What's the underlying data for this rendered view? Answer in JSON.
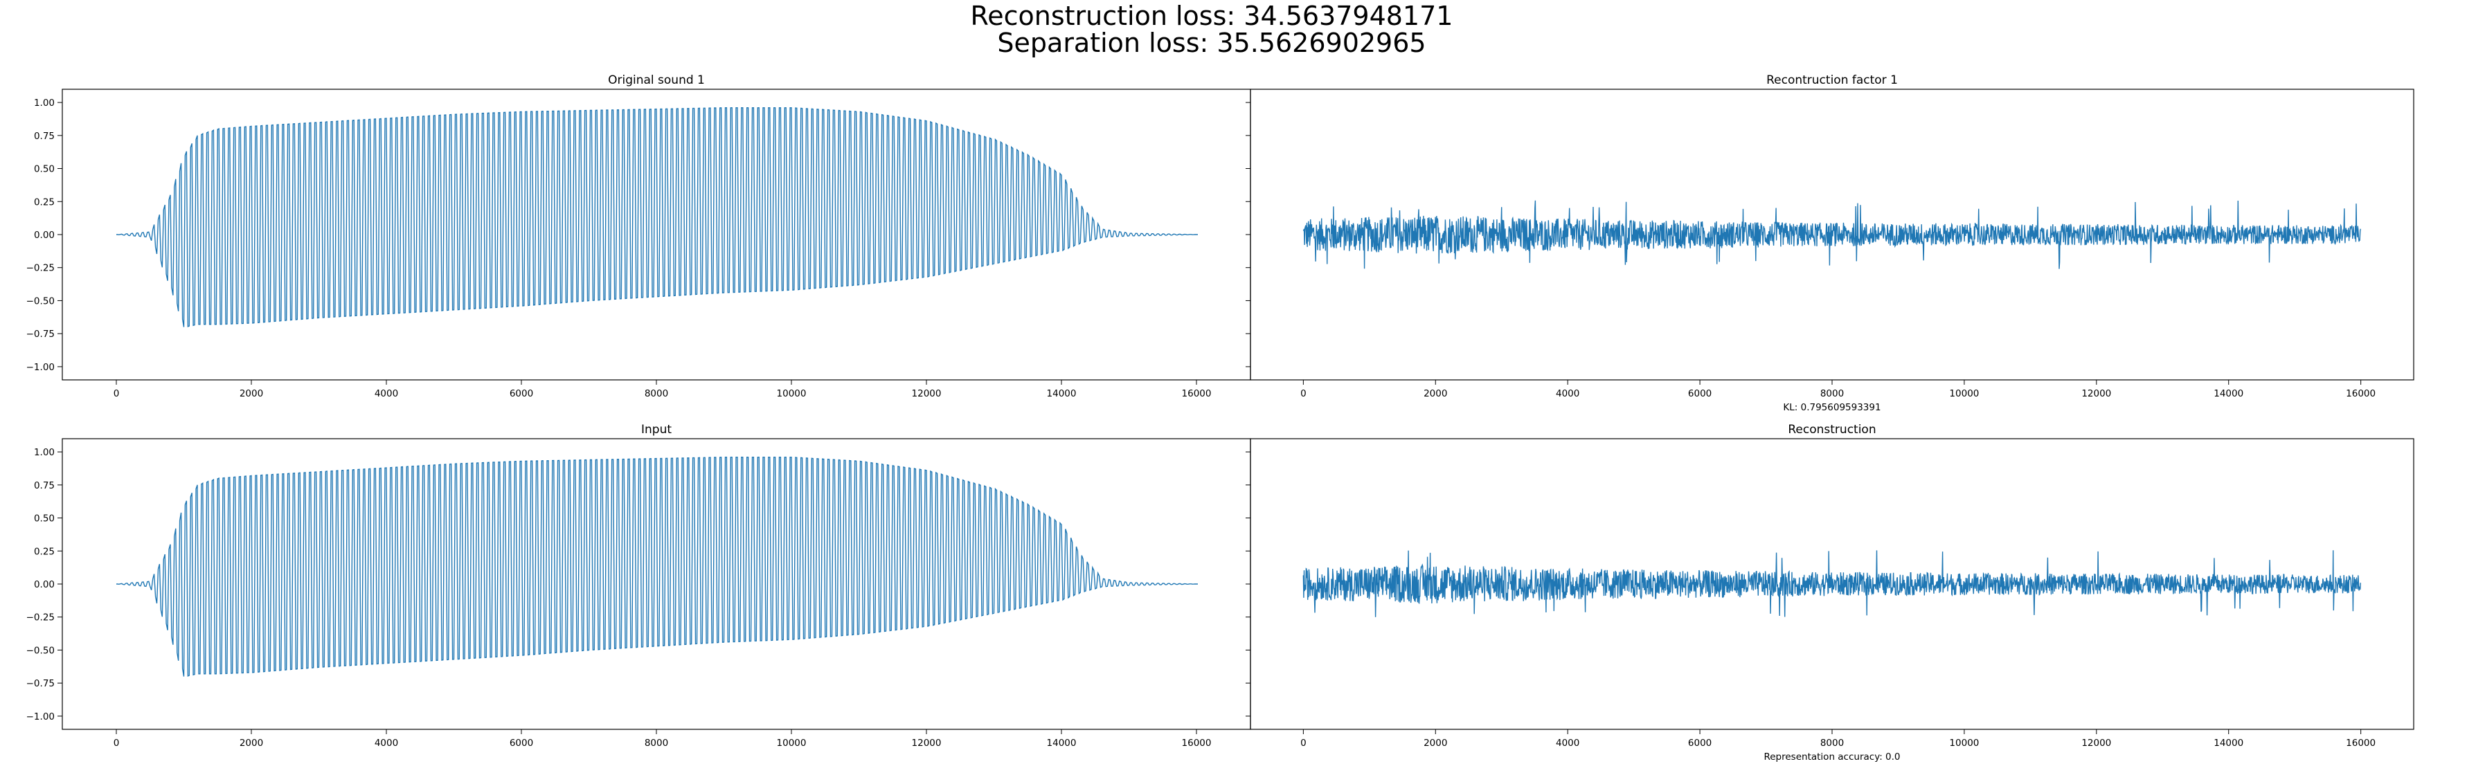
{
  "figure": {
    "title_line1": "Reconstruction loss: 34.5637948171",
    "title_line2": "Separation loss: 35.5626902965"
  },
  "chart_data": [
    {
      "type": "line",
      "title": "Original sound 1",
      "xlabel": "",
      "ylabel": "",
      "xlim": [
        -800,
        16800
      ],
      "ylim": [
        -1.1,
        1.1
      ],
      "xticks": [
        0,
        2000,
        4000,
        6000,
        8000,
        10000,
        12000,
        14000,
        16000
      ],
      "yticks": [
        1.0,
        0.75,
        0.5,
        0.25,
        0.0,
        -0.25,
        -0.5,
        -0.75,
        -1.0
      ],
      "xtick_labels": [
        "0",
        "2000",
        "4000",
        "6000",
        "8000",
        "10000",
        "12000",
        "14000",
        "16000"
      ],
      "ytick_labels": [
        "1.00",
        "0.75",
        "0.50",
        "0.25",
        "0.00",
        "−0.25",
        "−0.50",
        "−0.75",
        "−1.00"
      ],
      "color": "#1f77b4",
      "series": {
        "kind": "tone",
        "num_samples": 16000,
        "upper_envelope": [
          [
            0,
            0.0
          ],
          [
            500,
            0.02
          ],
          [
            800,
            0.3
          ],
          [
            1000,
            0.6
          ],
          [
            1200,
            0.75
          ],
          [
            1500,
            0.8
          ],
          [
            2000,
            0.82
          ],
          [
            3000,
            0.85
          ],
          [
            4000,
            0.88
          ],
          [
            5000,
            0.91
          ],
          [
            6000,
            0.93
          ],
          [
            7000,
            0.94
          ],
          [
            8000,
            0.95
          ],
          [
            9000,
            0.96
          ],
          [
            10000,
            0.96
          ],
          [
            11000,
            0.93
          ],
          [
            12000,
            0.86
          ],
          [
            13000,
            0.72
          ],
          [
            13500,
            0.6
          ],
          [
            14000,
            0.45
          ],
          [
            14300,
            0.2
          ],
          [
            14600,
            0.04
          ],
          [
            15000,
            0.01
          ],
          [
            16000,
            0.0
          ]
        ],
        "lower_envelope": [
          [
            0,
            0.0
          ],
          [
            500,
            -0.02
          ],
          [
            800,
            -0.4
          ],
          [
            1000,
            -0.7
          ],
          [
            1200,
            -0.68
          ],
          [
            1500,
            -0.68
          ],
          [
            2000,
            -0.67
          ],
          [
            3000,
            -0.63
          ],
          [
            4000,
            -0.6
          ],
          [
            5000,
            -0.57
          ],
          [
            6000,
            -0.54
          ],
          [
            7000,
            -0.5
          ],
          [
            8000,
            -0.47
          ],
          [
            9000,
            -0.44
          ],
          [
            10000,
            -0.42
          ],
          [
            11000,
            -0.38
          ],
          [
            12000,
            -0.32
          ],
          [
            13000,
            -0.22
          ],
          [
            13500,
            -0.17
          ],
          [
            14000,
            -0.12
          ],
          [
            14300,
            -0.06
          ],
          [
            14600,
            -0.02
          ],
          [
            15000,
            -0.01
          ],
          [
            16000,
            0.0
          ]
        ]
      }
    },
    {
      "type": "line",
      "title": "Recontruction factor 1",
      "xlabel": "KL: 0.795609593391",
      "ylabel": "",
      "xlim": [
        -800,
        16800
      ],
      "ylim": [
        -1.1,
        1.1
      ],
      "xticks": [
        0,
        2000,
        4000,
        6000,
        8000,
        10000,
        12000,
        14000,
        16000
      ],
      "xtick_labels": [
        "0",
        "2000",
        "4000",
        "6000",
        "8000",
        "10000",
        "12000",
        "14000",
        "16000"
      ],
      "color": "#1f77b4",
      "series": {
        "kind": "noise",
        "num_samples": 16000,
        "max_amplitude": 0.26,
        "typical_amplitude": [
          [
            0,
            0.12
          ],
          [
            2000,
            0.15
          ],
          [
            4000,
            0.12
          ],
          [
            8000,
            0.09
          ],
          [
            12000,
            0.08
          ],
          [
            16000,
            0.07
          ]
        ]
      }
    },
    {
      "type": "line",
      "title": "Input",
      "xlabel": "",
      "ylabel": "",
      "xlim": [
        -800,
        16800
      ],
      "ylim": [
        -1.1,
        1.1
      ],
      "xticks": [
        0,
        2000,
        4000,
        6000,
        8000,
        10000,
        12000,
        14000,
        16000
      ],
      "yticks": [
        1.0,
        0.75,
        0.5,
        0.25,
        0.0,
        -0.25,
        -0.5,
        -0.75,
        -1.0
      ],
      "xtick_labels": [
        "0",
        "2000",
        "4000",
        "6000",
        "8000",
        "10000",
        "12000",
        "14000",
        "16000"
      ],
      "ytick_labels": [
        "1.00",
        "0.75",
        "0.50",
        "0.25",
        "0.00",
        "−0.25",
        "−0.50",
        "−0.75",
        "−1.00"
      ],
      "color": "#1f77b4",
      "series": {
        "kind": "tone",
        "num_samples": 16000,
        "upper_envelope": [
          [
            0,
            0.0
          ],
          [
            500,
            0.02
          ],
          [
            800,
            0.3
          ],
          [
            1000,
            0.6
          ],
          [
            1200,
            0.75
          ],
          [
            1500,
            0.8
          ],
          [
            2000,
            0.82
          ],
          [
            3000,
            0.85
          ],
          [
            4000,
            0.88
          ],
          [
            5000,
            0.91
          ],
          [
            6000,
            0.93
          ],
          [
            7000,
            0.94
          ],
          [
            8000,
            0.95
          ],
          [
            9000,
            0.96
          ],
          [
            10000,
            0.96
          ],
          [
            11000,
            0.93
          ],
          [
            12000,
            0.86
          ],
          [
            13000,
            0.72
          ],
          [
            13500,
            0.6
          ],
          [
            14000,
            0.45
          ],
          [
            14300,
            0.2
          ],
          [
            14600,
            0.04
          ],
          [
            15000,
            0.01
          ],
          [
            16000,
            0.0
          ]
        ],
        "lower_envelope": [
          [
            0,
            0.0
          ],
          [
            500,
            -0.02
          ],
          [
            800,
            -0.4
          ],
          [
            1000,
            -0.7
          ],
          [
            1200,
            -0.68
          ],
          [
            1500,
            -0.68
          ],
          [
            2000,
            -0.67
          ],
          [
            3000,
            -0.63
          ],
          [
            4000,
            -0.6
          ],
          [
            5000,
            -0.57
          ],
          [
            6000,
            -0.54
          ],
          [
            7000,
            -0.5
          ],
          [
            8000,
            -0.47
          ],
          [
            9000,
            -0.44
          ],
          [
            10000,
            -0.42
          ],
          [
            11000,
            -0.38
          ],
          [
            12000,
            -0.32
          ],
          [
            13000,
            -0.22
          ],
          [
            13500,
            -0.17
          ],
          [
            14000,
            -0.12
          ],
          [
            14300,
            -0.06
          ],
          [
            14600,
            -0.02
          ],
          [
            15000,
            -0.01
          ],
          [
            16000,
            0.0
          ]
        ]
      }
    },
    {
      "type": "line",
      "title": "Reconstruction",
      "xlabel": "Representation accuracy: 0.0",
      "ylabel": "",
      "xlim": [
        -800,
        16800
      ],
      "ylim": [
        -1.1,
        1.1
      ],
      "xticks": [
        0,
        2000,
        4000,
        6000,
        8000,
        10000,
        12000,
        14000,
        16000
      ],
      "xtick_labels": [
        "0",
        "2000",
        "4000",
        "6000",
        "8000",
        "10000",
        "12000",
        "14000",
        "16000"
      ],
      "color": "#1f77b4",
      "series": {
        "kind": "noise",
        "num_samples": 16000,
        "max_amplitude": 0.26,
        "typical_amplitude": [
          [
            0,
            0.12
          ],
          [
            2000,
            0.15
          ],
          [
            4000,
            0.12
          ],
          [
            8000,
            0.09
          ],
          [
            12000,
            0.08
          ],
          [
            16000,
            0.07
          ]
        ]
      }
    }
  ]
}
